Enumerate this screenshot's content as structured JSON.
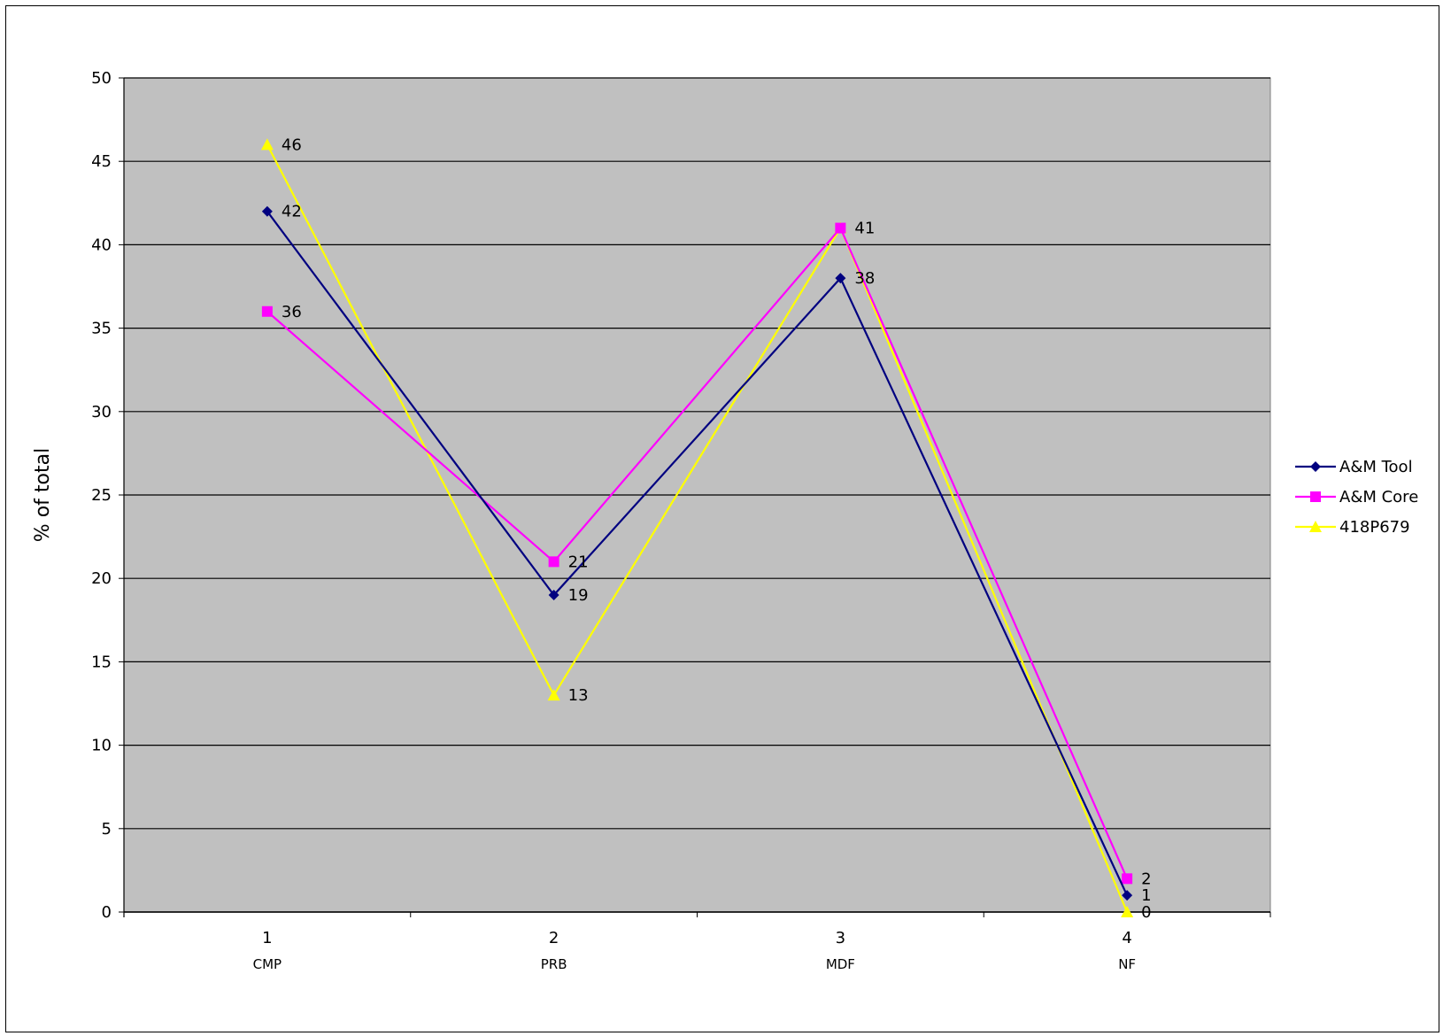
{
  "chart_data": {
    "type": "line",
    "title": "",
    "xlabel": "",
    "ylabel": "% of total",
    "ylim": [
      0,
      50
    ],
    "yticks": [
      0,
      5,
      10,
      15,
      20,
      25,
      30,
      35,
      40,
      45,
      50
    ],
    "x": [
      "1",
      "2",
      "3",
      "4"
    ],
    "categories": [
      "CMP",
      "PRB",
      "MDF",
      "NF"
    ],
    "grid": true,
    "legend_position": "right",
    "series": [
      {
        "name": "A&M Tool",
        "values": [
          42,
          19,
          38,
          1
        ],
        "color": "#000080",
        "marker": "diamond"
      },
      {
        "name": "A&M Core",
        "values": [
          36,
          21,
          41,
          2
        ],
        "color": "#ff00ff",
        "marker": "square"
      },
      {
        "name": "418P679",
        "values": [
          46,
          13,
          41,
          0
        ],
        "color": "#ffff00",
        "marker": "triangle"
      }
    ],
    "plot_background": "#c0c0c0"
  }
}
